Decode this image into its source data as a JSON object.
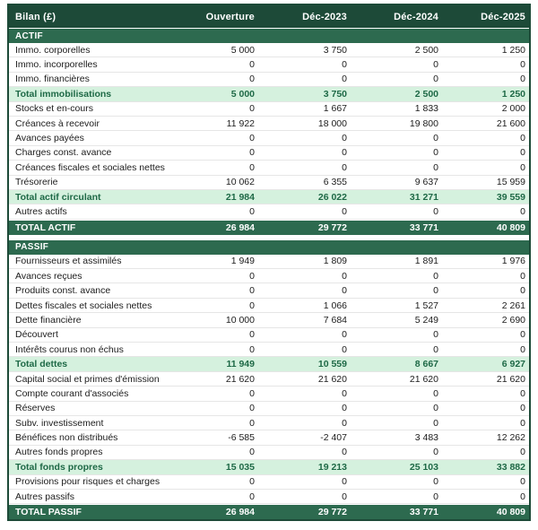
{
  "table": {
    "header": [
      "Bilan (£)",
      "Ouverture",
      "Déc-2023",
      "Déc-2024",
      "Déc-2025"
    ],
    "sections": [
      {
        "title": "ACTIF",
        "rows": [
          {
            "label": "Immo. corporelles",
            "type": "data",
            "values": [
              "5 000",
              "3 750",
              "2 500",
              "1 250"
            ]
          },
          {
            "label": "Immo. incorporelles",
            "type": "data",
            "values": [
              "0",
              "0",
              "0",
              "0"
            ]
          },
          {
            "label": "Immo. financières",
            "type": "data",
            "values": [
              "0",
              "0",
              "0",
              "0"
            ]
          },
          {
            "label": "Total immobilisations",
            "type": "subtotal",
            "values": [
              "5 000",
              "3 750",
              "2 500",
              "1 250"
            ]
          },
          {
            "label": "Stocks et en-cours",
            "type": "data",
            "values": [
              "0",
              "1 667",
              "1 833",
              "2 000"
            ]
          },
          {
            "label": "Créances à recevoir",
            "type": "data",
            "values": [
              "11 922",
              "18 000",
              "19 800",
              "21 600"
            ]
          },
          {
            "label": "Avances payées",
            "type": "data",
            "values": [
              "0",
              "0",
              "0",
              "0"
            ]
          },
          {
            "label": "Charges const. avance",
            "type": "data",
            "values": [
              "0",
              "0",
              "0",
              "0"
            ]
          },
          {
            "label": "Créances fiscales et sociales nettes",
            "type": "data",
            "values": [
              "0",
              "0",
              "0",
              "0"
            ]
          },
          {
            "label": "Trésorerie",
            "type": "data",
            "values": [
              "10 062",
              "6 355",
              "9 637",
              "15 959"
            ]
          },
          {
            "label": "Total actif circulant",
            "type": "subtotal",
            "values": [
              "21 984",
              "26 022",
              "31 271",
              "39 559"
            ]
          },
          {
            "label": "Autres actifs",
            "type": "data",
            "values": [
              "0",
              "0",
              "0",
              "0"
            ]
          },
          {
            "label": "TOTAL ACTIF",
            "type": "total",
            "values": [
              "26 984",
              "29 772",
              "33 771",
              "40 809"
            ]
          }
        ]
      },
      {
        "title": "PASSIF",
        "rows": [
          {
            "label": "Fournisseurs et assimilés",
            "type": "data",
            "values": [
              "1 949",
              "1 809",
              "1 891",
              "1 976"
            ]
          },
          {
            "label": "Avances reçues",
            "type": "data",
            "values": [
              "0",
              "0",
              "0",
              "0"
            ]
          },
          {
            "label": "Produits const. avance",
            "type": "data",
            "values": [
              "0",
              "0",
              "0",
              "0"
            ]
          },
          {
            "label": "Dettes fiscales et sociales nettes",
            "type": "data",
            "values": [
              "0",
              "1 066",
              "1 527",
              "2 261"
            ]
          },
          {
            "label": "Dette financière",
            "type": "data",
            "values": [
              "10 000",
              "7 684",
              "5 249",
              "2 690"
            ]
          },
          {
            "label": "Découvert",
            "type": "data",
            "values": [
              "0",
              "0",
              "0",
              "0"
            ]
          },
          {
            "label": "Intérêts courus non échus",
            "type": "data",
            "values": [
              "0",
              "0",
              "0",
              "0"
            ]
          },
          {
            "label": "Total dettes",
            "type": "subtotal",
            "values": [
              "11 949",
              "10 559",
              "8 667",
              "6 927"
            ]
          },
          {
            "label": "Capital social et primes d'émission",
            "type": "data",
            "values": [
              "21 620",
              "21 620",
              "21 620",
              "21 620"
            ]
          },
          {
            "label": "Compte courant d'associés",
            "type": "data",
            "values": [
              "0",
              "0",
              "0",
              "0"
            ]
          },
          {
            "label": "Réserves",
            "type": "data",
            "values": [
              "0",
              "0",
              "0",
              "0"
            ]
          },
          {
            "label": "Subv. investissement",
            "type": "data",
            "values": [
              "0",
              "0",
              "0",
              "0"
            ]
          },
          {
            "label": "Bénéfices non distribués",
            "type": "data",
            "values": [
              "-6 585",
              "-2 407",
              "3 483",
              "12 262"
            ]
          },
          {
            "label": "Autres fonds propres",
            "type": "data",
            "values": [
              "0",
              "0",
              "0",
              "0"
            ]
          },
          {
            "label": "Total fonds propres",
            "type": "subtotal",
            "values": [
              "15 035",
              "19 213",
              "25 103",
              "33 882"
            ]
          },
          {
            "label": "Provisions pour risques et charges",
            "type": "data",
            "values": [
              "0",
              "0",
              "0",
              "0"
            ]
          },
          {
            "label": "Autres passifs",
            "type": "data",
            "values": [
              "0",
              "0",
              "0",
              "0"
            ]
          },
          {
            "label": "TOTAL PASSIF",
            "type": "total",
            "values": [
              "26 984",
              "29 772",
              "33 771",
              "40 809"
            ]
          }
        ]
      }
    ]
  },
  "colors": {
    "header_bg": "#1d4a38",
    "section_bg": "#2d6a4f",
    "subtotal_bg": "#d5f1de",
    "subtotal_text": "#1e6946",
    "total_bg": "#2d6a4f",
    "body_text": "#1c1c1c"
  }
}
